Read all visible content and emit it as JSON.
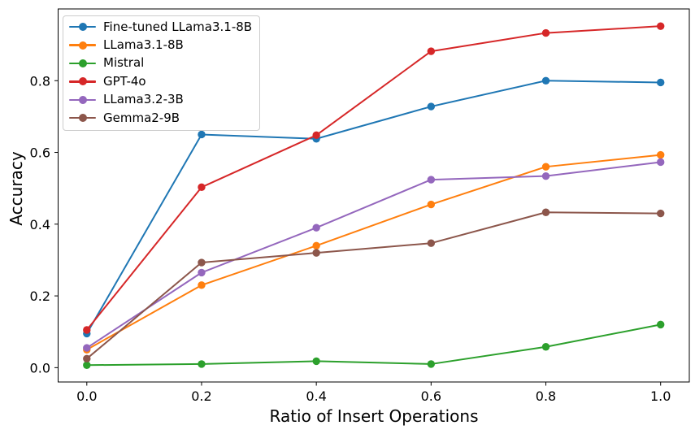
{
  "chart_data": {
    "type": "line",
    "title": "",
    "xlabel": "Ratio of Insert Operations",
    "ylabel": "Accuracy",
    "x": [
      0.0,
      0.2,
      0.4,
      0.6,
      0.8,
      1.0
    ],
    "xticks": [
      "0.0",
      "0.2",
      "0.4",
      "0.6",
      "0.8",
      "1.0"
    ],
    "yticks": [
      "0.0",
      "0.2",
      "0.4",
      "0.6",
      "0.8"
    ],
    "xlim": [
      -0.05,
      1.05
    ],
    "ylim": [
      -0.04,
      1.0
    ],
    "grid": false,
    "marker": "circle",
    "legend_position": "upper left",
    "legend_border_color": "#cccccc",
    "axis_color": "#000000",
    "background_color": "#ffffff",
    "series": [
      {
        "name": "Fine-tuned LLama3.1-8B",
        "color": "#1f77b4",
        "values": [
          0.095,
          0.65,
          0.638,
          0.728,
          0.8,
          0.795
        ]
      },
      {
        "name": "LLama3.1-8B",
        "color": "#ff7f0e",
        "values": [
          0.05,
          0.23,
          0.34,
          0.455,
          0.56,
          0.593
        ]
      },
      {
        "name": "Mistral",
        "color": "#2ca02c",
        "values": [
          0.007,
          0.01,
          0.018,
          0.01,
          0.058,
          0.12
        ]
      },
      {
        "name": "GPT-4o",
        "color": "#d62728",
        "values": [
          0.105,
          0.503,
          0.648,
          0.882,
          0.933,
          0.952
        ]
      },
      {
        "name": "LLama3.2-3B",
        "color": "#9467bd",
        "values": [
          0.055,
          0.265,
          0.39,
          0.524,
          0.534,
          0.573
        ]
      },
      {
        "name": "Gemma2-9B",
        "color": "#8c564b",
        "values": [
          0.025,
          0.293,
          0.32,
          0.347,
          0.433,
          0.43
        ]
      }
    ]
  }
}
